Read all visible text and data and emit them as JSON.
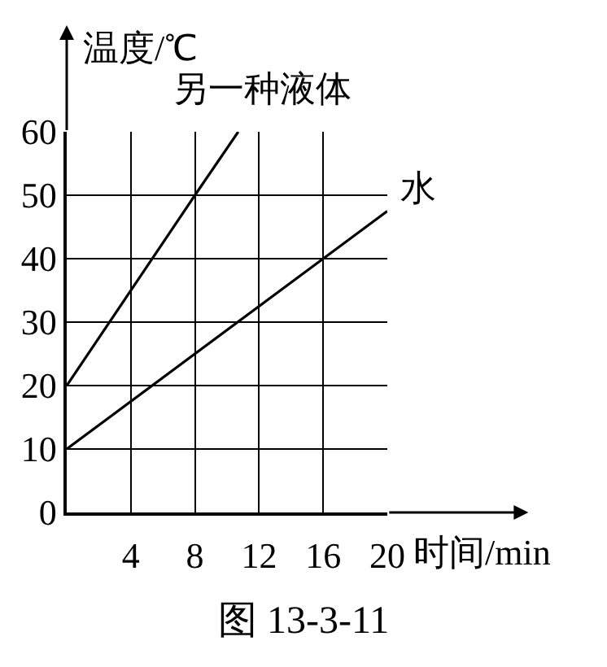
{
  "chart_data": {
    "type": "line",
    "xlabel": "时间/min",
    "ylabel": "温度/℃",
    "annotations": [
      "图 13-3-11"
    ],
    "series": [
      {
        "name": "另一种液体",
        "color": "#000000",
        "x": [
          0,
          8,
          10.7
        ],
        "values": [
          20,
          50,
          60
        ]
      },
      {
        "name": "水",
        "color": "#000000",
        "x": [
          0,
          16,
          20
        ],
        "values": [
          10,
          40,
          47.5
        ]
      }
    ],
    "xlim": [
      0,
      20
    ],
    "ylim": [
      0,
      60
    ],
    "xticks": [
      4,
      8,
      12,
      16,
      20
    ],
    "yticks": [
      0,
      10,
      20,
      30,
      40,
      50,
      60
    ],
    "grid": true,
    "legend": false,
    "marker": "none",
    "line_style": "solid"
  }
}
